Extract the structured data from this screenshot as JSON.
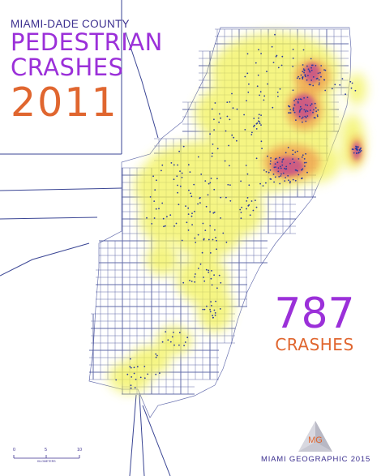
{
  "title": {
    "county": "MIAMI-DADE COUNTY",
    "line1": "PEDESTRIAN",
    "line2": "CRASHES",
    "year": "2011"
  },
  "count": {
    "number": "787",
    "label": "CRASHES"
  },
  "logo": {
    "letters": "MG",
    "icon": "mg-triangle-logo"
  },
  "credit": "MIAMI GEOGRAPHIC 2015",
  "scale": {
    "ticks": [
      "0",
      "5",
      "10"
    ],
    "unit": "KILOMETERS"
  },
  "colors": {
    "county_title": "#3b2f8f",
    "title": "#9b30d9",
    "year": "#e0662f",
    "count_number": "#9b30d9",
    "count_label": "#e0662f",
    "roads": "#2e3a8c",
    "heat_low": "#f2f25a",
    "heat_mid": "#f0a050",
    "heat_high": "#c8508a"
  }
}
